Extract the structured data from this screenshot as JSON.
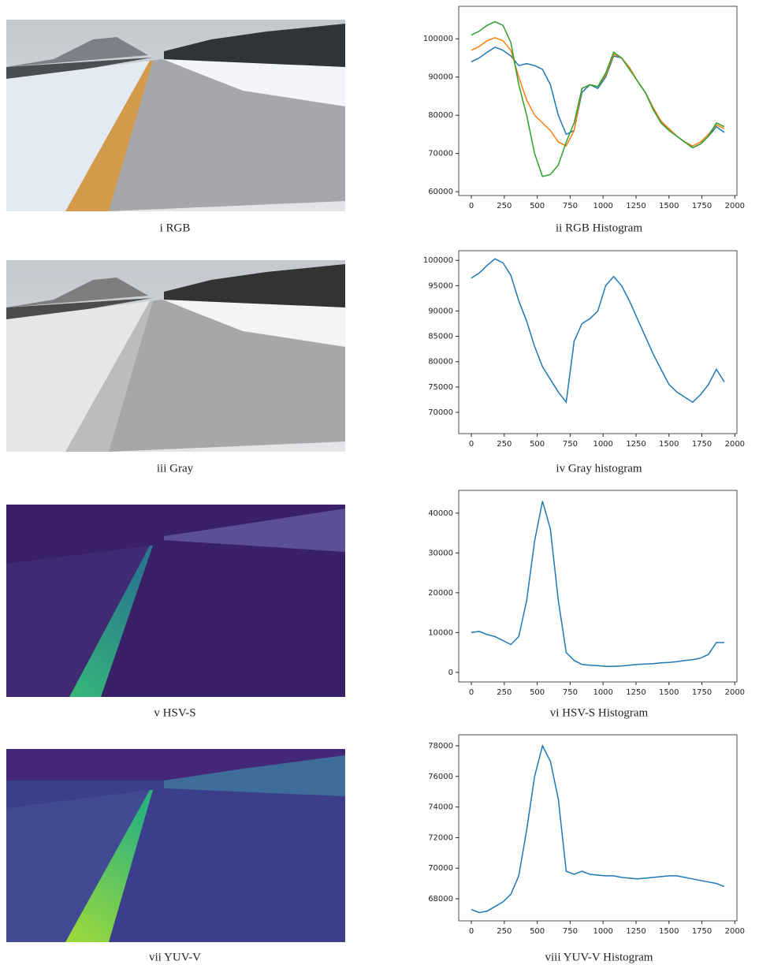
{
  "images": [
    {
      "caption": "i RGB"
    },
    {
      "caption": "iii Gray"
    },
    {
      "caption": "v HSV-S"
    },
    {
      "caption": "vii YUV-V"
    }
  ],
  "chart_data": [
    {
      "type": "line",
      "title": "ii RGB Histogram",
      "x": [
        0,
        60,
        120,
        180,
        240,
        300,
        360,
        420,
        480,
        540,
        600,
        660,
        720,
        780,
        840,
        900,
        960,
        1020,
        1080,
        1140,
        1200,
        1260,
        1320,
        1380,
        1440,
        1500,
        1560,
        1620,
        1680,
        1740,
        1800,
        1860,
        1920
      ],
      "series": [
        {
          "color": "#1f77b4",
          "values": [
            94000,
            95000,
            96500,
            97800,
            97000,
            95500,
            93000,
            93500,
            93000,
            92000,
            88000,
            80000,
            75000,
            76000,
            86000,
            88000,
            87000,
            90000,
            95500,
            95000,
            92500,
            89000,
            86000,
            82000,
            78000,
            76500,
            74500,
            73000,
            71500,
            72500,
            74500,
            77000,
            75500
          ]
        },
        {
          "color": "#ff7f0e",
          "values": [
            97000,
            98000,
            99500,
            100300,
            99500,
            97000,
            90000,
            84000,
            80000,
            78000,
            76000,
            73000,
            72000,
            76000,
            87000,
            88000,
            87500,
            90500,
            96000,
            95000,
            92500,
            89000,
            86000,
            82000,
            78500,
            76500,
            74500,
            73000,
            72000,
            73000,
            75000,
            77500,
            76500
          ]
        },
        {
          "color": "#2ca02c",
          "values": [
            101000,
            102000,
            103500,
            104500,
            103500,
            99000,
            88000,
            80000,
            70000,
            64000,
            64500,
            67000,
            73000,
            78000,
            87000,
            88000,
            87500,
            91000,
            96500,
            95000,
            92000,
            89000,
            86000,
            81500,
            78000,
            76000,
            74500,
            73000,
            71500,
            72500,
            74500,
            78000,
            77000
          ]
        }
      ],
      "xlim": [
        -96,
        2016
      ],
      "xticks": [
        0,
        250,
        500,
        750,
        1000,
        1250,
        1500,
        1750,
        2000
      ],
      "ylim": [
        59000,
        108500
      ],
      "yticks": [
        60000,
        70000,
        80000,
        90000,
        100000
      ]
    },
    {
      "type": "line",
      "title": "iv Gray histogram",
      "x": [
        0,
        60,
        120,
        180,
        240,
        300,
        360,
        420,
        480,
        540,
        600,
        660,
        720,
        780,
        840,
        900,
        960,
        1020,
        1080,
        1140,
        1200,
        1260,
        1320,
        1380,
        1440,
        1500,
        1560,
        1620,
        1680,
        1740,
        1800,
        1860,
        1920
      ],
      "series": [
        {
          "color": "#1f77b4",
          "values": [
            96500,
            97500,
            99000,
            100300,
            99500,
            97000,
            92000,
            88000,
            83000,
            79000,
            76500,
            74000,
            72000,
            84000,
            87500,
            88500,
            90000,
            95000,
            96800,
            95000,
            92000,
            88500,
            85000,
            81500,
            78500,
            75500,
            74000,
            73000,
            72000,
            73500,
            75500,
            78500,
            76000
          ]
        }
      ],
      "xlim": [
        -96,
        2016
      ],
      "xticks": [
        0,
        250,
        500,
        750,
        1000,
        1250,
        1500,
        1750,
        2000
      ],
      "ylim": [
        65800,
        101900
      ],
      "yticks": [
        70000,
        75000,
        80000,
        85000,
        90000,
        95000,
        100000
      ]
    },
    {
      "type": "line",
      "title": "vi HSV-S Histogram",
      "x": [
        0,
        60,
        120,
        180,
        240,
        300,
        360,
        420,
        480,
        540,
        600,
        660,
        720,
        780,
        840,
        900,
        960,
        1020,
        1080,
        1140,
        1200,
        1260,
        1320,
        1380,
        1440,
        1500,
        1560,
        1620,
        1680,
        1740,
        1800,
        1860,
        1920
      ],
      "series": [
        {
          "color": "#1f77b4",
          "values": [
            10000,
            10300,
            9500,
            9000,
            8000,
            7000,
            9000,
            18000,
            33000,
            43000,
            36000,
            18000,
            5000,
            3000,
            2000,
            1800,
            1700,
            1500,
            1500,
            1600,
            1800,
            2000,
            2100,
            2200,
            2400,
            2500,
            2700,
            3000,
            3200,
            3600,
            4500,
            7500,
            7500
          ]
        }
      ],
      "xlim": [
        -96,
        2016
      ],
      "xticks": [
        0,
        250,
        500,
        750,
        1000,
        1250,
        1500,
        1750,
        2000
      ],
      "ylim": [
        -2400,
        45700
      ],
      "yticks": [
        0,
        10000,
        20000,
        30000,
        40000
      ]
    },
    {
      "type": "line",
      "title": "viii YUV-V Histogram",
      "x": [
        0,
        60,
        120,
        180,
        240,
        300,
        360,
        420,
        480,
        540,
        600,
        660,
        720,
        780,
        840,
        900,
        960,
        1020,
        1080,
        1140,
        1200,
        1260,
        1320,
        1380,
        1440,
        1500,
        1560,
        1620,
        1680,
        1740,
        1800,
        1860,
        1920
      ],
      "series": [
        {
          "color": "#1f77b4",
          "values": [
            67300,
            67100,
            67200,
            67500,
            67800,
            68300,
            69500,
            72500,
            76000,
            78000,
            77000,
            74500,
            69800,
            69600,
            69800,
            69600,
            69550,
            69500,
            69500,
            69400,
            69350,
            69300,
            69350,
            69400,
            69450,
            69500,
            69500,
            69400,
            69300,
            69200,
            69100,
            69000,
            68800
          ]
        }
      ],
      "xlim": [
        -96,
        2016
      ],
      "xticks": [
        0,
        250,
        500,
        750,
        1000,
        1250,
        1500,
        1750,
        2000
      ],
      "ylim": [
        66560,
        78720
      ],
      "yticks": [
        68000,
        70000,
        72000,
        74000,
        76000,
        78000
      ]
    }
  ]
}
